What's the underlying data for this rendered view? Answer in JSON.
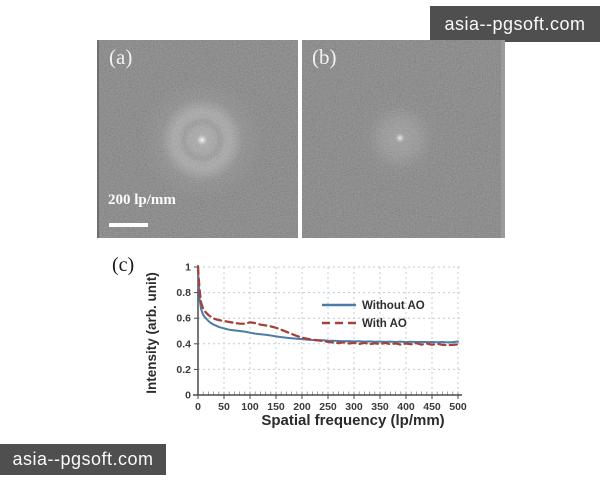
{
  "watermarks": {
    "top_right": "asia--pgsoft.com",
    "bottom_left": "asia--pgsoft.com"
  },
  "figure": {
    "panel_a": {
      "label": "(a)",
      "scale_bar": "200 lp/mm"
    },
    "panel_b": {
      "label": "(b)"
    },
    "panel_c": {
      "label": "(c)"
    }
  },
  "chart_data": {
    "type": "line",
    "title": "",
    "xlabel": "Spatial frequency (lp/mm)",
    "ylabel": "Intensity (arb. unit)",
    "xlim": [
      0,
      500
    ],
    "ylim": [
      0,
      1
    ],
    "xticks": [
      0,
      50,
      100,
      150,
      200,
      250,
      300,
      350,
      400,
      450,
      500
    ],
    "yticks": [
      0,
      0.2,
      0.4,
      0.6,
      0.8,
      1
    ],
    "grid": true,
    "grid_color": "#c3cad3",
    "axis_color": "#4a4a4a",
    "legend_position": "center-right",
    "series": [
      {
        "name": "Without AO",
        "color": "#4d7ba7",
        "style": "solid",
        "x": [
          0,
          1,
          3,
          6,
          10,
          15,
          20,
          25,
          30,
          40,
          50,
          60,
          70,
          80,
          90,
          100,
          110,
          120,
          130,
          140,
          150,
          160,
          170,
          180,
          190,
          200,
          210,
          220,
          230,
          240,
          250,
          260,
          270,
          280,
          290,
          300,
          310,
          320,
          330,
          340,
          350,
          360,
          370,
          380,
          390,
          400,
          410,
          420,
          430,
          440,
          450,
          460,
          470,
          480,
          490,
          500
        ],
        "y": [
          1.0,
          0.9,
          0.75,
          0.67,
          0.625,
          0.6,
          0.578,
          0.562,
          0.55,
          0.532,
          0.52,
          0.51,
          0.505,
          0.5,
          0.495,
          0.487,
          0.48,
          0.475,
          0.47,
          0.465,
          0.458,
          0.452,
          0.447,
          0.443,
          0.44,
          0.437,
          0.433,
          0.43,
          0.428,
          0.427,
          0.425,
          0.424,
          0.422,
          0.42,
          0.421,
          0.419,
          0.42,
          0.417,
          0.419,
          0.416,
          0.418,
          0.415,
          0.417,
          0.414,
          0.417,
          0.413,
          0.416,
          0.414,
          0.415,
          0.413,
          0.414,
          0.412,
          0.414,
          0.411,
          0.413,
          0.418
        ]
      },
      {
        "name": "With AO",
        "color": "#a2433b",
        "style": "dashed",
        "x": [
          0,
          1,
          3,
          6,
          10,
          15,
          20,
          25,
          30,
          40,
          50,
          60,
          70,
          80,
          90,
          100,
          110,
          120,
          130,
          140,
          150,
          160,
          170,
          180,
          190,
          200,
          210,
          220,
          230,
          240,
          250,
          260,
          270,
          280,
          290,
          300,
          310,
          320,
          330,
          340,
          350,
          360,
          370,
          380,
          390,
          400,
          410,
          420,
          430,
          440,
          450,
          460,
          470,
          480,
          490,
          500
        ],
        "y": [
          1.0,
          0.93,
          0.82,
          0.72,
          0.672,
          0.645,
          0.625,
          0.61,
          0.598,
          0.585,
          0.578,
          0.57,
          0.563,
          0.558,
          0.556,
          0.568,
          0.562,
          0.55,
          0.544,
          0.536,
          0.525,
          0.51,
          0.494,
          0.477,
          0.462,
          0.448,
          0.44,
          0.432,
          0.427,
          0.422,
          0.415,
          0.41,
          0.405,
          0.412,
          0.402,
          0.408,
          0.398,
          0.408,
          0.396,
          0.404,
          0.398,
          0.407,
          0.396,
          0.403,
          0.394,
          0.402,
          0.396,
          0.405,
          0.394,
          0.402,
          0.393,
          0.4,
          0.392,
          0.39,
          0.392,
          0.395
        ]
      }
    ]
  }
}
